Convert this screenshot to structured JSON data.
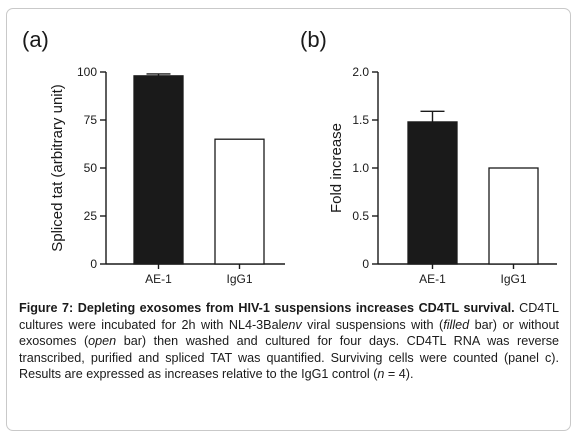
{
  "figure": {
    "caption": {
      "title": "Figure 7: Depleting exosomes from HIV-1 suspensions increases CD4TL survival.",
      "body_parts": [
        {
          "text": " CD4TL cultures were incubated for 2h with NL4-3Bal",
          "style": "normal"
        },
        {
          "text": "env",
          "style": "italic"
        },
        {
          "text": " viral suspensions with (",
          "style": "normal"
        },
        {
          "text": "filled",
          "style": "italic"
        },
        {
          "text": " bar) or without exosomes (",
          "style": "normal"
        },
        {
          "text": "open",
          "style": "italic"
        },
        {
          "text": " bar) then washed and cultured for four days. CD4TL RNA was reverse transcribed, purified and spliced TAT was quantified. Surviving cells were counted (panel c). Results are expressed as increases relative to the IgG1 control (",
          "style": "normal"
        },
        {
          "text": "n",
          "style": "italic"
        },
        {
          "text": " = 4).",
          "style": "normal"
        }
      ]
    }
  },
  "chart_data": [
    {
      "type": "bar",
      "panel_label": "(a)",
      "categories": [
        "AE-1",
        "IgG1"
      ],
      "values": [
        98,
        65
      ],
      "errors": [
        1,
        null
      ],
      "bar_fills": [
        "#1a1a1a",
        "#ffffff"
      ],
      "ylabel": "Spliced tat (arbitrary unit)",
      "xlabel": "",
      "ylim": [
        0,
        100
      ],
      "yticks": [
        0,
        25,
        50,
        75,
        100
      ],
      "ytick_labels": [
        "0",
        "25",
        "50",
        "75",
        "100"
      ],
      "grid": false
    },
    {
      "type": "bar",
      "panel_label": "(b)",
      "categories": [
        "AE-1",
        "IgG1"
      ],
      "values": [
        1.48,
        1.0
      ],
      "errors": [
        0.11,
        null
      ],
      "bar_fills": [
        "#1a1a1a",
        "#ffffff"
      ],
      "ylabel": "Fold increase",
      "xlabel": "",
      "ylim": [
        0,
        2.0
      ],
      "yticks": [
        0,
        0.5,
        1.0,
        1.5,
        2.0
      ],
      "ytick_labels": [
        "0",
        "0.5",
        "1.0",
        "1.5",
        "2.0"
      ],
      "grid": false
    }
  ]
}
